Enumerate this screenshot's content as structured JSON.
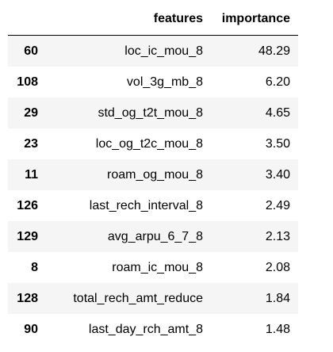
{
  "table": {
    "columns": [
      "features",
      "importance"
    ],
    "rows": [
      {
        "index": "60",
        "features": "loc_ic_mou_8",
        "importance": "48.29"
      },
      {
        "index": "108",
        "features": "vol_3g_mb_8",
        "importance": "6.20"
      },
      {
        "index": "29",
        "features": "std_og_t2t_mou_8",
        "importance": "4.65"
      },
      {
        "index": "23",
        "features": "loc_og_t2c_mou_8",
        "importance": "3.50"
      },
      {
        "index": "11",
        "features": "roam_og_mou_8",
        "importance": "3.40"
      },
      {
        "index": "126",
        "features": "last_rech_interval_8",
        "importance": "2.49"
      },
      {
        "index": "129",
        "features": "avg_arpu_6_7_8",
        "importance": "2.13"
      },
      {
        "index": "8",
        "features": "roam_ic_mou_8",
        "importance": "2.08"
      },
      {
        "index": "128",
        "features": "total_rech_amt_reduce",
        "importance": "1.84"
      },
      {
        "index": "90",
        "features": "last_day_rch_amt_8",
        "importance": "1.48"
      }
    ]
  }
}
